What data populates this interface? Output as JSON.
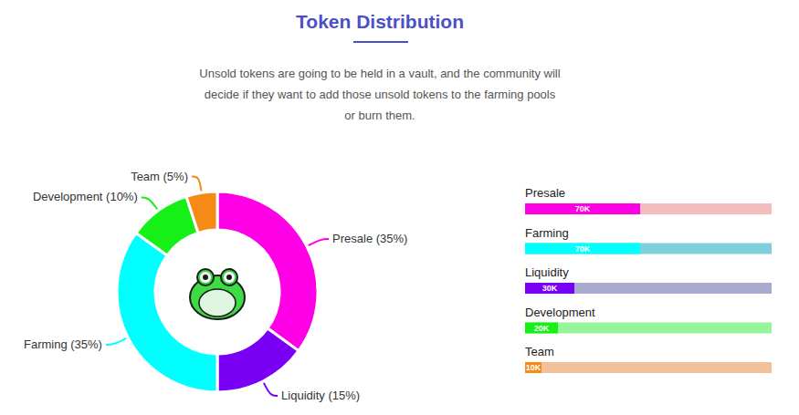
{
  "header": {
    "title": "Token Distribution",
    "description": [
      "Unsold tokens are going to be held in a vault, and the community will",
      "decide if they want to add those unsold tokens to the farming pools",
      "or burn them."
    ]
  },
  "chart_data": [
    {
      "type": "pie",
      "values": [
        35,
        15,
        35,
        10,
        5
      ],
      "value_labels": [
        "Presale (35%)",
        "Liquidity (15%)",
        "Farming (35%)",
        "Development (10%)",
        "Team (5%)"
      ],
      "colors": [
        "#ff00e6",
        "#7a00f5",
        "#00ffff",
        "#16f016",
        "#f58b16"
      ],
      "data_labels": true
    },
    {
      "type": "bar",
      "orientation": "horizontal",
      "categories": [
        "Presale",
        "Farming",
        "Liquidity",
        "Development",
        "Team"
      ],
      "values": [
        70000,
        70000,
        30000,
        20000,
        10000
      ],
      "value_labels": [
        "70K",
        "70K",
        "30K",
        "20K",
        "10K"
      ],
      "colors": [
        "#ff00e6",
        "#00ffff",
        "#7a00f5",
        "#16f016",
        "#f58b16"
      ],
      "xlim": [
        0,
        150000
      ],
      "data_labels": true,
      "tick_labels": "y"
    }
  ]
}
